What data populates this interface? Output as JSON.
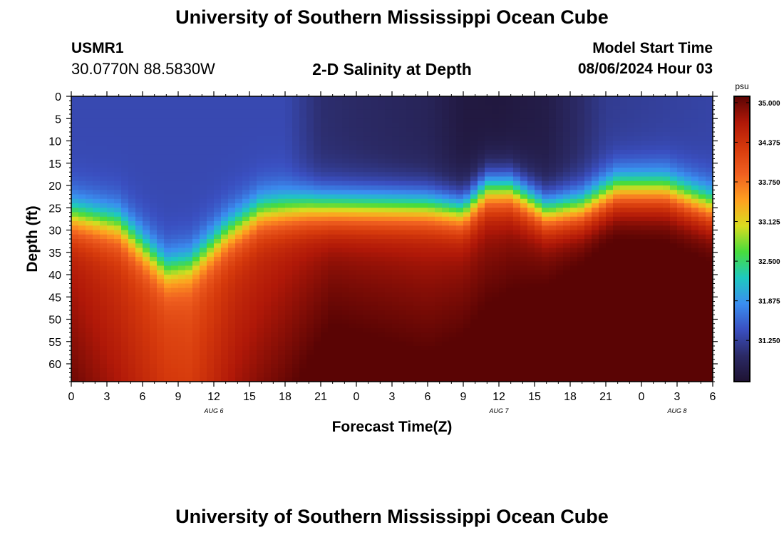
{
  "page": {
    "title": "University of Southern Mississippi Ocean Cube",
    "footer_title": "University of Southern Mississippi Ocean Cube",
    "station_id": "USMR1",
    "station_coords": "30.0770N  88.5830W",
    "model_start_label": "Model Start Time",
    "model_start_value": "08/06/2024 Hour 03"
  },
  "chart_data": {
    "type": "heatmap",
    "title": "2-D Salinity at Depth",
    "xlabel": "Forecast Time(Z)",
    "ylabel": "Depth (ft)",
    "x_range_hours": [
      0,
      54
    ],
    "y_range_ft": [
      0,
      64
    ],
    "x_ticks": [
      "0",
      "3",
      "6",
      "9",
      "12",
      "15",
      "18",
      "21",
      "0",
      "3",
      "6",
      "9",
      "12",
      "15",
      "18",
      "21",
      "0",
      "3",
      "6"
    ],
    "date_labels": [
      {
        "label": "AUG 6",
        "hour": 12
      },
      {
        "label": "AUG 7",
        "hour": 36
      },
      {
        "label": "AUG 8",
        "hour": 51
      }
    ],
    "y_ticks": [
      0,
      5,
      10,
      15,
      20,
      25,
      30,
      35,
      40,
      45,
      50,
      55,
      60
    ],
    "colorbar": {
      "unit": "psu",
      "min": 30.6,
      "max": 35.1,
      "ticks": [
        "35.000",
        "34.375",
        "33.750",
        "33.125",
        "32.500",
        "31.875",
        "31.250"
      ],
      "colors": [
        "#1e1232",
        "#2b2a66",
        "#3a4fc0",
        "#3a8ef0",
        "#1ec8c0",
        "#48dc3c",
        "#d8dc20",
        "#ffa020",
        "#f06020",
        "#d63a0c",
        "#b01808",
        "#5a0404"
      ]
    },
    "halocline_depth_ft_by_hour": [
      [
        0,
        27
      ],
      [
        4,
        29
      ],
      [
        8,
        39
      ],
      [
        10,
        38
      ],
      [
        13,
        31
      ],
      [
        16,
        26
      ],
      [
        20,
        25
      ],
      [
        26,
        25
      ],
      [
        30,
        25
      ],
      [
        33,
        26
      ],
      [
        35,
        21
      ],
      [
        37,
        21
      ],
      [
        40,
        26
      ],
      [
        43,
        25
      ],
      [
        46,
        21
      ],
      [
        50,
        21
      ],
      [
        54,
        25
      ]
    ],
    "surface_salinity_psu_by_hour": [
      [
        0,
        31.35
      ],
      [
        18,
        31.35
      ],
      [
        21,
        31.05
      ],
      [
        30,
        30.9
      ],
      [
        33,
        30.72
      ],
      [
        36,
        30.7
      ],
      [
        40,
        30.78
      ],
      [
        45,
        31.2
      ],
      [
        54,
        31.3
      ]
    ],
    "bottom_salinity_psu_by_hour": [
      [
        0,
        34.6
      ],
      [
        8,
        34.1
      ],
      [
        10,
        34.05
      ],
      [
        14,
        34.4
      ],
      [
        22,
        34.8
      ],
      [
        30,
        34.7
      ],
      [
        36,
        34.8
      ],
      [
        42,
        35.0
      ],
      [
        45,
        35.1
      ],
      [
        54,
        35.05
      ]
    ]
  }
}
